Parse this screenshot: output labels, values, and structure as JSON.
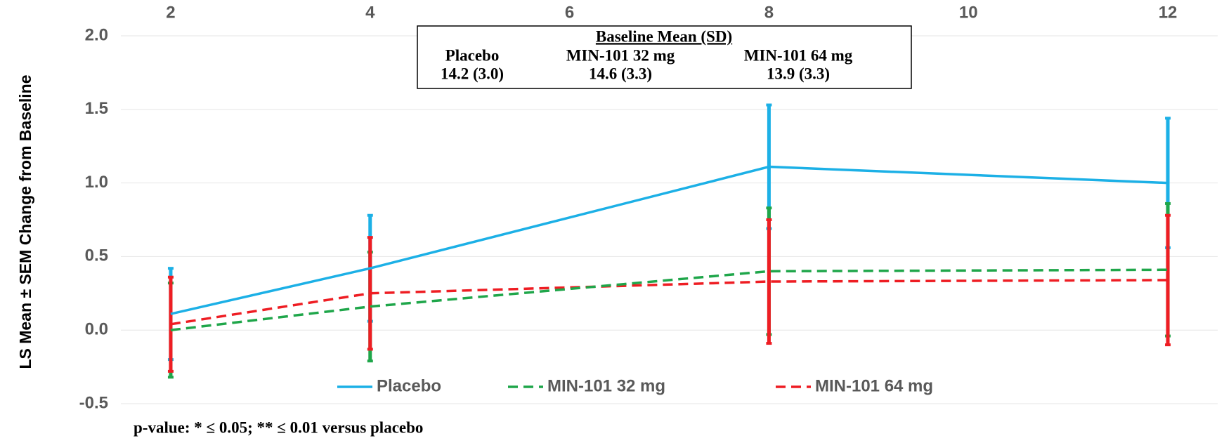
{
  "chart_data": {
    "type": "line",
    "ylabel": "LS Mean ± SEM Change from Baseline",
    "x": [
      2,
      4,
      8,
      12
    ],
    "xlim": [
      1.5,
      12.5
    ],
    "xticks": [
      2,
      4,
      6,
      8,
      10,
      12
    ],
    "ylim": [
      -0.5,
      2.0
    ],
    "yticks": [
      {
        "value": 2.0,
        "label": "2.0"
      },
      1.5,
      {
        "value": 1.0,
        "label": "1.0"
      },
      0.5,
      {
        "value": 0.0,
        "label": "0.0"
      },
      -0.5
    ],
    "grid": true,
    "legend": "bottom",
    "series": [
      {
        "name": "Placebo",
        "color": "#1cb0e6",
        "dash": false,
        "values": [
          0.11,
          0.42,
          1.11,
          1.0
        ],
        "errors": [
          0.31,
          0.36,
          0.42,
          0.44
        ]
      },
      {
        "name": "MIN-101 32 mg",
        "color": "#1fa64a",
        "dash": true,
        "values": [
          0.0,
          0.16,
          0.4,
          0.41
        ],
        "errors": [
          0.32,
          0.37,
          0.43,
          0.45
        ]
      },
      {
        "name": "MIN-101 64 mg",
        "color": "#ee1d23",
        "dash": true,
        "values": [
          0.04,
          0.25,
          0.33,
          0.34
        ],
        "errors": [
          0.32,
          0.38,
          0.42,
          0.44
        ]
      }
    ],
    "annotation": {
      "title": "Baseline Mean (SD)",
      "columns": [
        "Placebo",
        "MIN-101 32 mg",
        "MIN-101 64 mg"
      ],
      "values": [
        "14.2 (3.0)",
        "14.6 (3.3)",
        "13.9 (3.3)"
      ]
    },
    "footnote": "p-value: * ≤ 0.05;  ** ≤ 0.01 versus placebo"
  }
}
